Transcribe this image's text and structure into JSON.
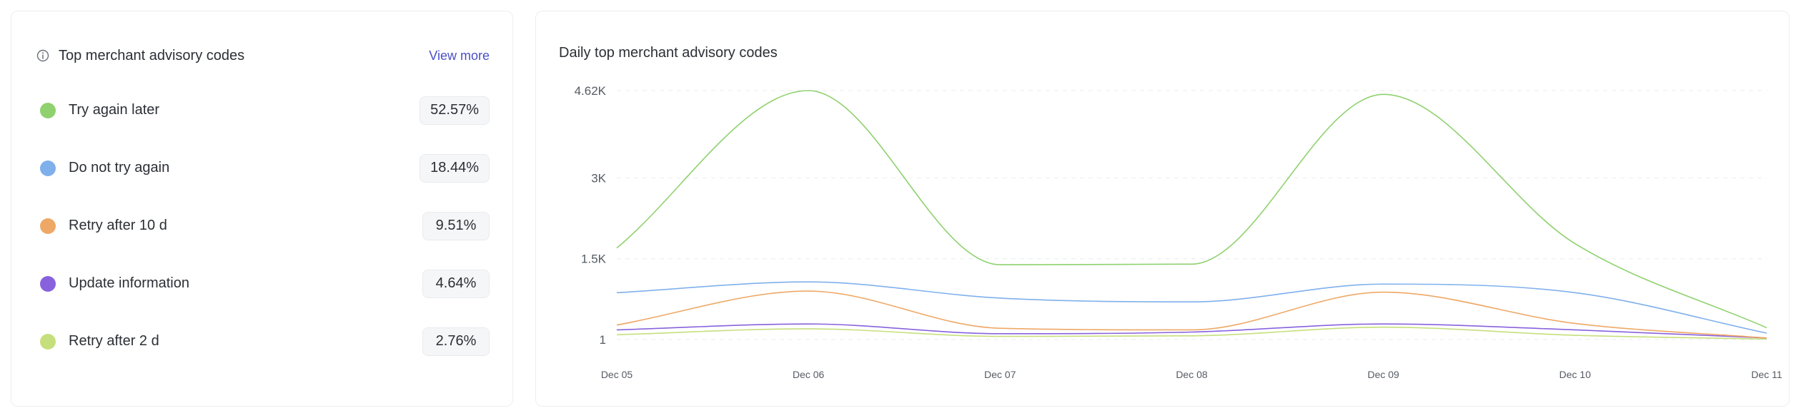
{
  "left_panel": {
    "title": "Top merchant advisory codes",
    "view_more": "View more",
    "items": [
      {
        "label": "Try again later",
        "percent": "52.57%",
        "color": "#8fd16f"
      },
      {
        "label": "Do not try again",
        "percent": "18.44%",
        "color": "#7fb0ec"
      },
      {
        "label": "Retry after 10 d",
        "percent": "9.51%",
        "color": "#eea866"
      },
      {
        "label": "Update information",
        "percent": "4.64%",
        "color": "#8862dd"
      },
      {
        "label": "Retry after 2 d",
        "percent": "2.76%",
        "color": "#c6df7d"
      }
    ]
  },
  "chart_data": {
    "type": "line",
    "title": "Daily top merchant advisory codes",
    "x": [
      "Dec 05",
      "Dec 06",
      "Dec 07",
      "Dec 08",
      "Dec 09",
      "Dec 10",
      "Dec 11"
    ],
    "y_ticks": [
      {
        "value": 4620,
        "label": "4.62K"
      },
      {
        "value": 3000,
        "label": "3K"
      },
      {
        "value": 1500,
        "label": "1.5K"
      },
      {
        "value": 1,
        "label": "1"
      }
    ],
    "ylim": [
      1,
      4620
    ],
    "grid": true,
    "series": [
      {
        "color": "#8fd16f",
        "values": [
          1700,
          4620,
          1390,
          1400,
          4550,
          1780,
          220
        ]
      },
      {
        "color": "#7fb0ec",
        "values": [
          870,
          1070,
          770,
          700,
          1030,
          870,
          120
        ]
      },
      {
        "color": "#eea866",
        "values": [
          270,
          900,
          210,
          180,
          880,
          300,
          30
        ]
      },
      {
        "color": "#8862dd",
        "values": [
          180,
          290,
          110,
          140,
          290,
          180,
          30
        ]
      },
      {
        "color": "#c6df7d",
        "values": [
          90,
          200,
          60,
          70,
          230,
          80,
          10
        ]
      }
    ]
  }
}
